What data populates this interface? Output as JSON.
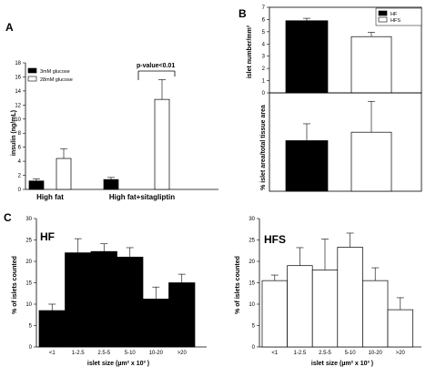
{
  "panels": {
    "A": "A",
    "B": "B",
    "C": "C"
  },
  "chart_data": [
    {
      "id": "A",
      "type": "bar",
      "categories": [
        "High fat",
        "High fat+sitagliptin"
      ],
      "series": [
        {
          "name": "3mM glucose",
          "values": [
            1.2,
            1.4
          ],
          "errors": [
            0.3,
            0.3
          ],
          "fill": "#000000"
        },
        {
          "name": "28mM glucose",
          "values": [
            4.4,
            12.8
          ],
          "errors": [
            1.4,
            2.8
          ],
          "fill": "#ffffff"
        }
      ],
      "ylabel": "insulin (ng/mL)",
      "ylim": [
        0,
        18
      ],
      "yticks": [
        0,
        2,
        4,
        6,
        8,
        10,
        12,
        14,
        16,
        18
      ],
      "annotation": "p-value<0.01",
      "legend": "top-left"
    },
    {
      "id": "B-top",
      "type": "bar",
      "categories": [
        "HF",
        "HFS"
      ],
      "values": [
        5.9,
        4.6
      ],
      "errors": [
        0.2,
        0.35
      ],
      "fills": [
        "#000000",
        "#ffffff"
      ],
      "ylabel": "islet number/mm²",
      "ylim": [
        0,
        7
      ],
      "yticks": [
        0,
        1,
        2,
        3,
        4,
        5,
        6,
        7
      ],
      "legend_entries": [
        "HF",
        "HFS"
      ],
      "legend": "top-right"
    },
    {
      "id": "B-bottom",
      "type": "bar",
      "categories": [
        "HF",
        "HFS"
      ],
      "values": [
        1.8,
        2.1
      ],
      "errors": [
        0.6,
        1.1
      ],
      "fills": [
        "#000000",
        "#ffffff"
      ],
      "ylabel": "% islet area/total tissue area",
      "ylim": [
        0,
        3.5
      ],
      "yticks": []
    },
    {
      "id": "C-HF",
      "type": "bar",
      "title": "HF",
      "categories": [
        "<1",
        "1-2.5",
        "2.5-5",
        "5-10",
        "10-20",
        ">20"
      ],
      "values": [
        8.5,
        22.0,
        22.3,
        21.0,
        11.2,
        15.0
      ],
      "errors": [
        1.5,
        3.3,
        1.8,
        2.2,
        2.8,
        2.0
      ],
      "fill": "#000000",
      "xlabel": "islet size (µm² x 10³ )",
      "ylabel": "% of islets counted",
      "ylim": [
        0,
        30
      ],
      "yticks": [
        0,
        5,
        10,
        15,
        20,
        25,
        30
      ]
    },
    {
      "id": "C-HFS",
      "type": "bar",
      "title": "HFS",
      "categories": [
        "<1",
        "1-2.5",
        "2.5-5",
        "5-10",
        "10-20",
        ">20"
      ],
      "values": [
        15.5,
        19.0,
        18.0,
        23.3,
        15.5,
        8.7
      ],
      "errors": [
        1.3,
        4.2,
        7.2,
        3.3,
        3.0,
        2.8
      ],
      "fill": "#ffffff",
      "xlabel": "islet size (µm² x 10³ )",
      "ylabel": "% of islets counted",
      "ylim": [
        0,
        30
      ],
      "yticks": [
        0,
        5,
        10,
        15,
        20,
        25,
        30
      ]
    }
  ]
}
